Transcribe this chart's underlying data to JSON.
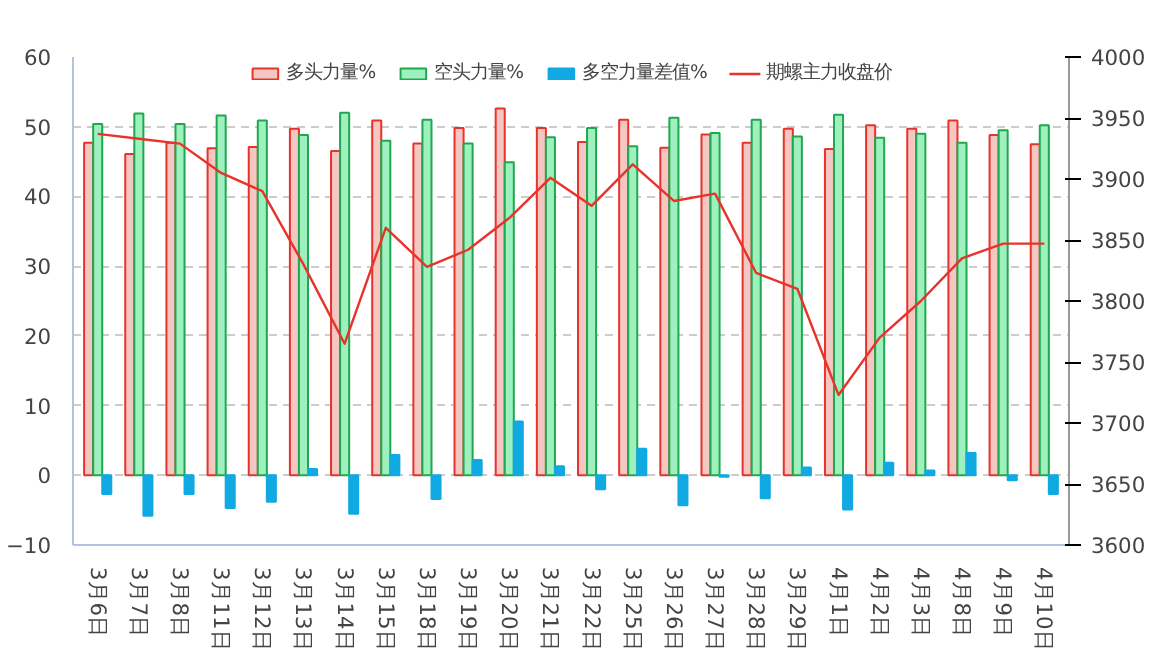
{
  "chart_data": {
    "type": "bar",
    "categories": [
      "3月6日",
      "3月7日",
      "3月8日",
      "3月11日",
      "3月12日",
      "3月13日",
      "3月14日",
      "3月15日",
      "3月18日",
      "3月19日",
      "3月20日",
      "3月21日",
      "3月22日",
      "3月25日",
      "3月26日",
      "3月27日",
      "3月28日",
      "3月29日",
      "4月1日",
      "4月2日",
      "4月3日",
      "4月8日",
      "4月9日",
      "4月10日"
    ],
    "series": [
      {
        "name": "多头力量%",
        "color": "#f4c7c3",
        "values": [
          47.7,
          46.1,
          47.7,
          46.9,
          47.1,
          49.7,
          46.5,
          50.9,
          47.6,
          49.8,
          52.6,
          49.8,
          47.8,
          51.0,
          47.0,
          48.9,
          47.7,
          49.7,
          46.8,
          50.2,
          49.7,
          50.9,
          48.8,
          47.5
        ]
      },
      {
        "name": "空头力量%",
        "color": "#9ef0be",
        "values": [
          50.4,
          51.9,
          50.4,
          51.6,
          50.9,
          48.8,
          52.0,
          48.0,
          51.0,
          47.6,
          44.9,
          48.5,
          49.8,
          47.2,
          51.3,
          49.1,
          51.0,
          48.6,
          51.7,
          48.4,
          49.0,
          47.7,
          49.5,
          50.2
        ]
      },
      {
        "name": "多空力量差值%",
        "color": "#11a9e2",
        "values": [
          -2.7,
          -5.8,
          -2.7,
          -4.7,
          -3.8,
          0.9,
          -5.5,
          2.9,
          -3.4,
          2.2,
          7.7,
          1.3,
          -2.0,
          3.8,
          -4.3,
          -0.2,
          -3.3,
          1.1,
          -4.9,
          1.8,
          0.7,
          3.2,
          -0.7,
          -2.7
        ]
      },
      {
        "name": "期螺主力收盘价",
        "type": "line",
        "axis": "y2",
        "color": "#e8322c",
        "values": [
          3937,
          3933,
          3929,
          3905,
          3890,
          3830,
          3765,
          3860,
          3828,
          3842,
          3868,
          3901,
          3878,
          3912,
          3882,
          3888,
          3823,
          3810,
          3723,
          3770,
          3800,
          3835,
          3847,
          3847
        ]
      }
    ],
    "ylim": [
      -10,
      60
    ],
    "yticks": [
      -10,
      0,
      10,
      20,
      30,
      40,
      50,
      60
    ],
    "y2lim": [
      3600,
      4000
    ],
    "y2ticks": [
      3600,
      3650,
      3700,
      3750,
      3800,
      3850,
      3900,
      3950,
      4000
    ],
    "grid": "y",
    "legend": "top"
  }
}
